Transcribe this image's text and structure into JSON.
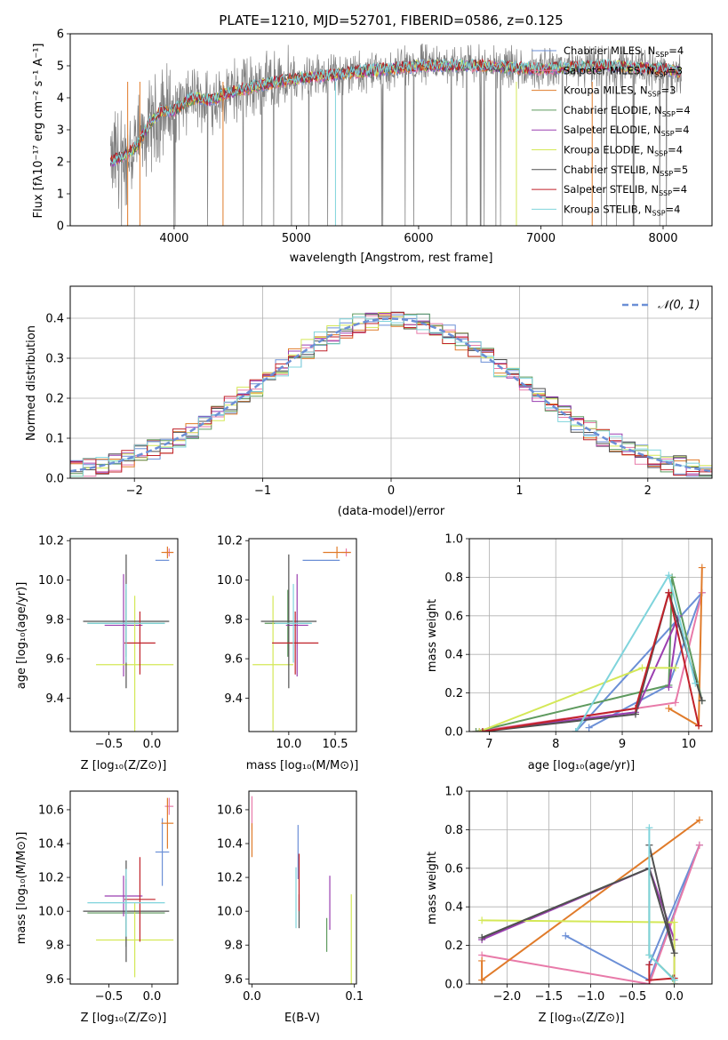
{
  "chart_data": [
    {
      "id": "spectrum",
      "type": "line",
      "title": "PLATE=1210, MJD=52701, FIBERID=0586, z=0.125",
      "xlabel": "wavelength [Angstrom, rest frame]",
      "ylabel": "Flux [fλ10⁻¹⁷ erg cm⁻² s⁻¹ A⁻¹]",
      "xlim": [
        3150,
        8400
      ],
      "ylim": [
        0,
        6
      ],
      "xticks": [
        4000,
        5000,
        6000,
        7000,
        8000
      ],
      "yticks": [
        0,
        1,
        2,
        3,
        4,
        5,
        6
      ],
      "grid": false,
      "legend": "upper-right",
      "data_color": "#808080",
      "continuum_x": [
        3480,
        3600,
        3700,
        3800,
        3900,
        4000,
        4100,
        4200,
        4300,
        4400,
        4500,
        4700,
        5000,
        5500,
        6000,
        6500,
        7000,
        7500,
        8000,
        8150
      ],
      "continuum_y": [
        2.0,
        2.2,
        2.5,
        3.2,
        3.6,
        3.6,
        3.9,
        4.0,
        3.9,
        4.1,
        4.2,
        4.4,
        4.6,
        4.8,
        5.0,
        5.0,
        4.9,
        5.0,
        4.9,
        4.8
      ],
      "series": [
        {
          "name": "Chabrier MILES, N",
          "sub": "SSP",
          "eq": "=4",
          "color": "#6b8fd6"
        },
        {
          "name": "Salpeter MILES, N",
          "sub": "SSP",
          "eq": "=3",
          "color": "#e87aa9"
        },
        {
          "name": "Kroupa MILES, N",
          "sub": "SSP",
          "eq": "=3",
          "color": "#e07b2a"
        },
        {
          "name": "Chabrier ELODIE, N",
          "sub": "SSP",
          "eq": "=4",
          "color": "#5e9a5e"
        },
        {
          "name": "Salpeter ELODIE, N",
          "sub": "SSP",
          "eq": "=4",
          "color": "#9a3fb0"
        },
        {
          "name": "Kroupa ELODIE, N",
          "sub": "SSP",
          "eq": "=4",
          "color": "#d4e857"
        },
        {
          "name": "Chabrier STELIB, N",
          "sub": "SSP",
          "eq": "=5",
          "color": "#505050"
        },
        {
          "name": "Salpeter STELIB, N",
          "sub": "SSP",
          "eq": "=4",
          "color": "#c0222a"
        },
        {
          "name": "Kroupa STELIB, N",
          "sub": "SSP",
          "eq": "=4",
          "color": "#7fd4dc"
        }
      ]
    },
    {
      "id": "residuals",
      "type": "histogram",
      "xlabel": "(data-model)/error",
      "ylabel": "Normed distribution",
      "xlim": [
        -2.5,
        2.5
      ],
      "ylim": [
        0,
        0.48
      ],
      "xticks": [
        -2,
        -1,
        0,
        1,
        2
      ],
      "yticks": [
        0.0,
        0.1,
        0.2,
        0.3,
        0.4
      ],
      "grid": true,
      "legend": "upper-right",
      "reference": {
        "label": "𝒩(0, 1)",
        "mu": 0,
        "sigma": 1,
        "color": "#6b8fd6"
      },
      "bin_edges_range": [
        -2.5,
        2.5
      ],
      "nbins": 50,
      "series_colors": [
        "#6b8fd6",
        "#e87aa9",
        "#e07b2a",
        "#5e9a5e",
        "#9a3fb0",
        "#d4e857",
        "#505050",
        "#c0222a",
        "#7fd4dc"
      ]
    },
    {
      "id": "z-age",
      "type": "errorbar",
      "xlabel": "Z [log₁₀(Z/Z⊙)]",
      "ylabel": "age  [log₁₀(age/yr)]",
      "xlim": [
        -0.95,
        0.3
      ],
      "ylim": [
        9.23,
        10.21
      ],
      "xticks": [
        -0.5,
        0.0
      ],
      "yticks": [
        9.4,
        9.6,
        9.8,
        10.0,
        10.2
      ],
      "points": [
        {
          "x": 0.12,
          "y": 10.1,
          "xe": 0.08,
          "ye": 0.0,
          "color": "#6b8fd6"
        },
        {
          "x": 0.2,
          "y": 10.14,
          "xe": 0.05,
          "ye": 0.02,
          "color": "#e87aa9"
        },
        {
          "x": 0.18,
          "y": 10.14,
          "xe": 0.07,
          "ye": 0.03,
          "color": "#e07b2a"
        },
        {
          "x": -0.3,
          "y": 9.78,
          "xe": 0.45,
          "ye": 0.17,
          "color": "#5e9a5e"
        },
        {
          "x": -0.33,
          "y": 9.77,
          "xe": 0.22,
          "ye": 0.26,
          "color": "#9a3fb0"
        },
        {
          "x": -0.2,
          "y": 9.57,
          "xe": 0.45,
          "ye": 0.35,
          "color": "#d4e857"
        },
        {
          "x": -0.3,
          "y": 9.79,
          "xe": 0.5,
          "ye": 0.34,
          "color": "#505050"
        },
        {
          "x": -0.14,
          "y": 9.68,
          "xe": 0.18,
          "ye": 0.16,
          "color": "#c0222a"
        },
        {
          "x": -0.3,
          "y": 9.78,
          "xe": 0.45,
          "ye": 0.2,
          "color": "#7fd4dc"
        }
      ]
    },
    {
      "id": "mass-age",
      "type": "errorbar",
      "xlabel": "mass [log₁₀(M/M⊙)]",
      "ylabel": "",
      "xlim": [
        9.57,
        10.73
      ],
      "ylim": [
        9.23,
        10.21
      ],
      "xticks": [
        10.0,
        10.5
      ],
      "yticks": [
        9.4,
        9.6,
        9.8,
        10.0,
        10.2
      ],
      "points": [
        {
          "x": 10.35,
          "y": 10.1,
          "xe": 0.2,
          "ye": 0.0,
          "color": "#6b8fd6"
        },
        {
          "x": 10.62,
          "y": 10.14,
          "xe": 0.05,
          "ye": 0.02,
          "color": "#e87aa9"
        },
        {
          "x": 10.52,
          "y": 10.14,
          "xe": 0.15,
          "ye": 0.03,
          "color": "#e07b2a"
        },
        {
          "x": 9.99,
          "y": 9.78,
          "xe": 0.25,
          "ye": 0.17,
          "color": "#5e9a5e"
        },
        {
          "x": 10.09,
          "y": 9.77,
          "xe": 0.12,
          "ye": 0.26,
          "color": "#9a3fb0"
        },
        {
          "x": 9.83,
          "y": 9.57,
          "xe": 0.22,
          "ye": 0.35,
          "color": "#d4e857"
        },
        {
          "x": 10.0,
          "y": 9.79,
          "xe": 0.3,
          "ye": 0.34,
          "color": "#505050"
        },
        {
          "x": 10.07,
          "y": 9.68,
          "xe": 0.25,
          "ye": 0.16,
          "color": "#c0222a"
        },
        {
          "x": 10.05,
          "y": 9.78,
          "xe": 0.2,
          "ye": 0.2,
          "color": "#7fd4dc"
        }
      ]
    },
    {
      "id": "age-weight",
      "type": "line",
      "xlabel": "age  [log₁₀(age/yr)]",
      "ylabel": "mass weight",
      "xlim": [
        6.7,
        10.35
      ],
      "ylim": [
        0,
        1.0
      ],
      "xticks": [
        7,
        8,
        9,
        10
      ],
      "yticks": [
        0.0,
        0.2,
        0.4,
        0.6,
        0.8,
        1.0
      ],
      "grid": true,
      "series": [
        {
          "color": "#6b8fd6",
          "x": [
            8.5,
            9.7,
            10.2,
            8.3
          ],
          "y": [
            0.02,
            0.24,
            0.72,
            0.0
          ]
        },
        {
          "color": "#e87aa9",
          "x": [
            6.8,
            9.8,
            10.2
          ],
          "y": [
            0.0,
            0.15,
            0.72
          ]
        },
        {
          "color": "#e07b2a",
          "x": [
            9.7,
            10.15,
            10.2
          ],
          "y": [
            0.12,
            0.03,
            0.85
          ]
        },
        {
          "color": "#5e9a5e",
          "x": [
            6.8,
            9.7,
            9.75,
            10.2
          ],
          "y": [
            0.0,
            0.24,
            0.8,
            0.16
          ]
        },
        {
          "color": "#9a3fb0",
          "x": [
            6.85,
            9.2,
            9.85,
            9.7
          ],
          "y": [
            0.0,
            0.1,
            0.6,
            0.23
          ]
        },
        {
          "color": "#d4e857",
          "x": [
            6.85,
            9.3,
            9.8
          ],
          "y": [
            0.0,
            0.33,
            0.33
          ]
        },
        {
          "color": "#505050",
          "x": [
            6.9,
            9.2,
            9.7,
            10.2
          ],
          "y": [
            0.0,
            0.09,
            0.72,
            0.16
          ]
        },
        {
          "color": "#c0222a",
          "x": [
            6.9,
            9.2,
            9.7,
            10.15
          ],
          "y": [
            0.0,
            0.12,
            0.72,
            0.03
          ]
        },
        {
          "color": "#7fd4dc",
          "x": [
            8.3,
            9.7,
            10.1
          ],
          "y": [
            0.0,
            0.81,
            0.25
          ]
        }
      ]
    },
    {
      "id": "z-mass",
      "type": "errorbar",
      "xlabel": "Z [log₁₀(Z/Z⊙)]",
      "ylabel": "mass [log₁₀(M/M⊙)]",
      "xlim": [
        -0.95,
        0.3
      ],
      "ylim": [
        9.57,
        10.71
      ],
      "xticks": [
        -0.5,
        0.0
      ],
      "yticks": [
        9.6,
        9.8,
        10.0,
        10.2,
        10.4,
        10.6
      ],
      "points": [
        {
          "x": 0.12,
          "y": 10.35,
          "xe": 0.08,
          "ye": 0.2,
          "color": "#6b8fd6"
        },
        {
          "x": 0.2,
          "y": 10.62,
          "xe": 0.05,
          "ye": 0.05,
          "color": "#e87aa9"
        },
        {
          "x": 0.18,
          "y": 10.52,
          "xe": 0.07,
          "ye": 0.15,
          "color": "#e07b2a"
        },
        {
          "x": -0.3,
          "y": 9.99,
          "xe": 0.45,
          "ye": 0.2,
          "color": "#5e9a5e"
        },
        {
          "x": -0.33,
          "y": 10.09,
          "xe": 0.22,
          "ye": 0.12,
          "color": "#9a3fb0"
        },
        {
          "x": -0.2,
          "y": 9.83,
          "xe": 0.45,
          "ye": 0.22,
          "color": "#d4e857"
        },
        {
          "x": -0.3,
          "y": 10.0,
          "xe": 0.5,
          "ye": 0.3,
          "color": "#505050"
        },
        {
          "x": -0.14,
          "y": 10.07,
          "xe": 0.18,
          "ye": 0.25,
          "color": "#c0222a"
        },
        {
          "x": -0.3,
          "y": 10.05,
          "xe": 0.45,
          "ye": 0.2,
          "color": "#7fd4dc"
        }
      ]
    },
    {
      "id": "ebv-mass",
      "type": "errorbar",
      "xlabel": "E(B-V)",
      "ylabel": "",
      "xlim": [
        -0.003,
        0.102
      ],
      "ylim": [
        9.57,
        10.71
      ],
      "xticks": [
        0.0,
        0.1
      ],
      "yticks": [
        9.6,
        9.8,
        10.0,
        10.2,
        10.4,
        10.6
      ],
      "points": [
        {
          "x": 0.045,
          "y": 10.35,
          "xe": 0.0,
          "ye": 0.16,
          "color": "#6b8fd6"
        },
        {
          "x": 0.0,
          "y": 10.58,
          "xe": 0.0,
          "ye": 0.1,
          "color": "#e87aa9"
        },
        {
          "x": 0.0,
          "y": 10.42,
          "xe": 0.0,
          "ye": 0.1,
          "color": "#e07b2a"
        },
        {
          "x": 0.073,
          "y": 9.86,
          "xe": 0.0,
          "ye": 0.1,
          "color": "#5e9a5e"
        },
        {
          "x": 0.076,
          "y": 10.05,
          "xe": 0.0,
          "ye": 0.16,
          "color": "#9a3fb0"
        },
        {
          "x": 0.097,
          "y": 9.83,
          "xe": 0.0,
          "ye": 0.27,
          "color": "#d4e857"
        },
        {
          "x": 0.046,
          "y": 10.0,
          "xe": 0.0,
          "ye": 0.1,
          "color": "#505050"
        },
        {
          "x": 0.046,
          "y": 10.17,
          "xe": 0.0,
          "ye": 0.17,
          "color": "#c0222a"
        },
        {
          "x": 0.043,
          "y": 10.08,
          "xe": 0.0,
          "ye": 0.18,
          "color": "#7fd4dc"
        }
      ]
    },
    {
      "id": "z-weight",
      "type": "line",
      "xlabel": "Z [log₁₀(Z/Z⊙)]",
      "ylabel": "mass weight",
      "xlim": [
        -2.45,
        0.45
      ],
      "ylim": [
        0,
        1.0
      ],
      "xticks": [
        -2.0,
        -1.5,
        -1.0,
        -0.5,
        0.0
      ],
      "yticks": [
        0.0,
        0.2,
        0.4,
        0.6,
        0.8,
        1.0
      ],
      "grid": true,
      "series": [
        {
          "color": "#6b8fd6",
          "x": [
            -1.3,
            -0.3,
            0.3,
            -0.3
          ],
          "y": [
            0.25,
            0.02,
            0.72,
            0.1
          ]
        },
        {
          "color": "#e87aa9",
          "x": [
            -2.3,
            -0.3,
            0.3
          ],
          "y": [
            0.15,
            0.0,
            0.72
          ]
        },
        {
          "color": "#e07b2a",
          "x": [
            -2.3,
            -2.3,
            0.3
          ],
          "y": [
            0.12,
            0.02,
            0.85
          ]
        },
        {
          "color": "#5e9a5e",
          "x": [
            -2.3,
            -0.3,
            -0.3,
            -0.02
          ],
          "y": [
            0.24,
            0.6,
            0.15,
            0.03
          ]
        },
        {
          "color": "#9a3fb0",
          "x": [
            -2.3,
            -0.3,
            0.0,
            0.0
          ],
          "y": [
            0.23,
            0.6,
            0.23,
            0.0
          ]
        },
        {
          "color": "#d4e857",
          "x": [
            -2.3,
            0.0,
            0.0
          ],
          "y": [
            0.33,
            0.32,
            0.0
          ]
        },
        {
          "color": "#505050",
          "x": [
            -2.3,
            -0.3,
            0.0,
            -0.3
          ],
          "y": [
            0.24,
            0.6,
            0.16,
            0.72
          ]
        },
        {
          "color": "#c0222a",
          "x": [
            -0.3,
            -0.3,
            0.0
          ],
          "y": [
            0.1,
            0.02,
            0.03
          ]
        },
        {
          "color": "#7fd4dc",
          "x": [
            -0.3,
            -0.3,
            0.0
          ],
          "y": [
            0.81,
            0.15,
            0.02
          ]
        }
      ]
    }
  ]
}
